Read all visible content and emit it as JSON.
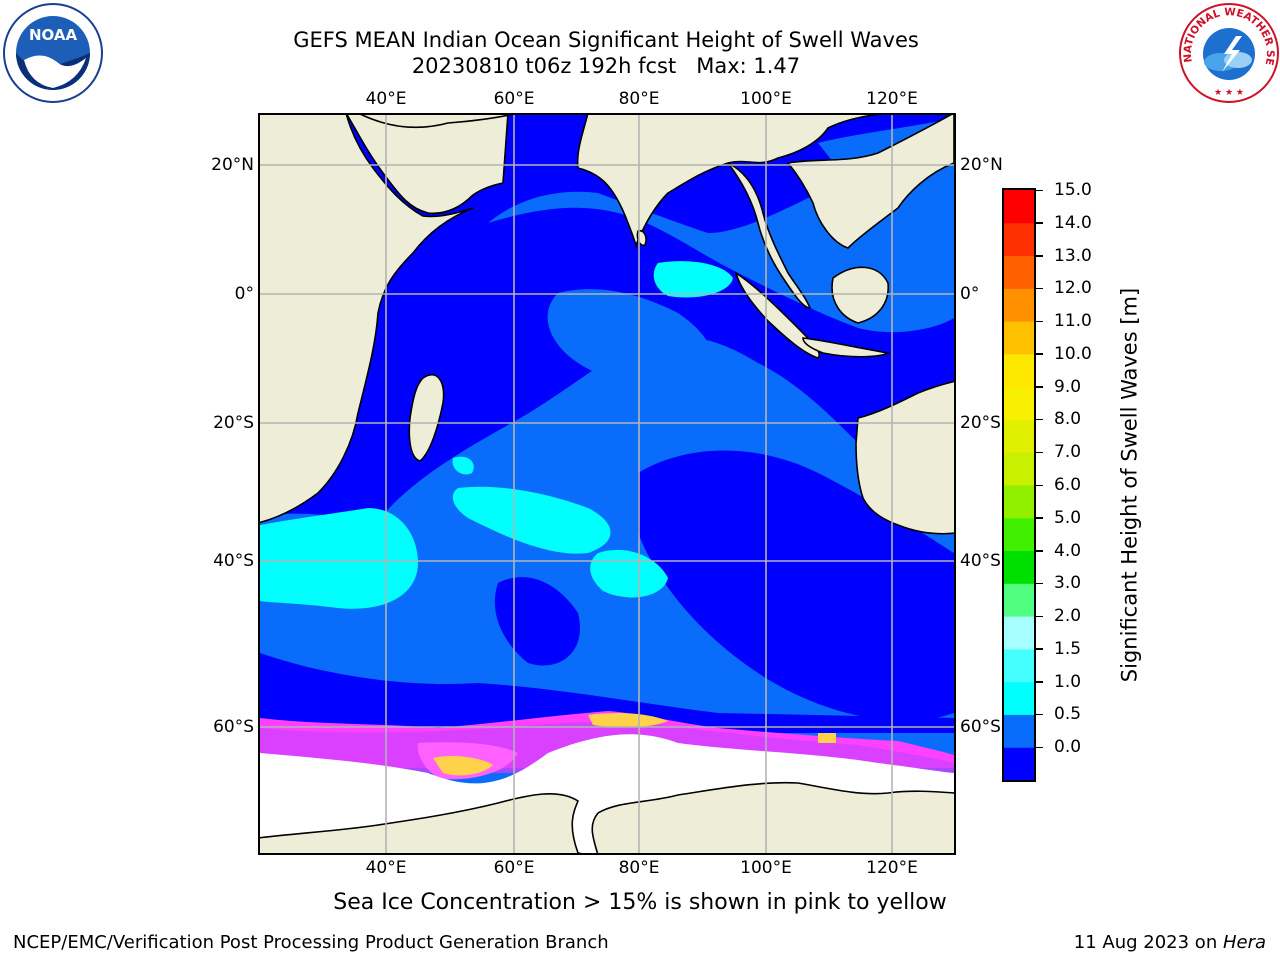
{
  "header": {
    "title_line1": "GEFS MEAN Indian Ocean Significant Height of Swell Waves",
    "title_line2": "20230810 t06z 192h fcst   Max: 1.47"
  },
  "map": {
    "lon_labels": [
      "40°E",
      "60°E",
      "80°E",
      "100°E",
      "120°E"
    ],
    "lat_labels": [
      "20°N",
      "0°",
      "20°S",
      "40°S",
      "60°S"
    ],
    "colors": {
      "land": "#eeeed8",
      "ocean_low": "#0000ff",
      "ocean_mid": "#0a6cfa",
      "ocean_high": "#00ffff",
      "grid": "#b4b4b4",
      "ice_pink": "#ff40ff",
      "ice_yellow": "#ffd24a"
    }
  },
  "colorbar": {
    "title": "Significant Height of Swell Waves [m]",
    "ticks": [
      "15.0",
      "14.0",
      "13.0",
      "12.0",
      "11.0",
      "10.0",
      "9.0",
      "8.0",
      "7.0",
      "6.0",
      "5.0",
      "4.0",
      "3.0",
      "2.0",
      "1.5",
      "1.0",
      "0.5",
      "0.0"
    ],
    "colors": [
      "#0000ff",
      "#0a6cfa",
      "#00ffff",
      "#45ffff",
      "#a8ffff",
      "#50ff80",
      "#00e000",
      "#40f000",
      "#90f000",
      "#c8f000",
      "#e0f000",
      "#f8f000",
      "#ffe800",
      "#ffc000",
      "#ff9000",
      "#ff6000",
      "#ff3000",
      "#ff0000"
    ]
  },
  "caption": "Sea Ice Concentration > 15% is shown in pink to yellow",
  "footer": {
    "left": "NCEP/EMC/Verification Post Processing Product Generation Branch",
    "right_prefix": "11 Aug 2023 on ",
    "right_host": "Hera"
  },
  "logos": {
    "left": "NOAA",
    "right": "NATIONAL WEATHER SERVICE"
  }
}
